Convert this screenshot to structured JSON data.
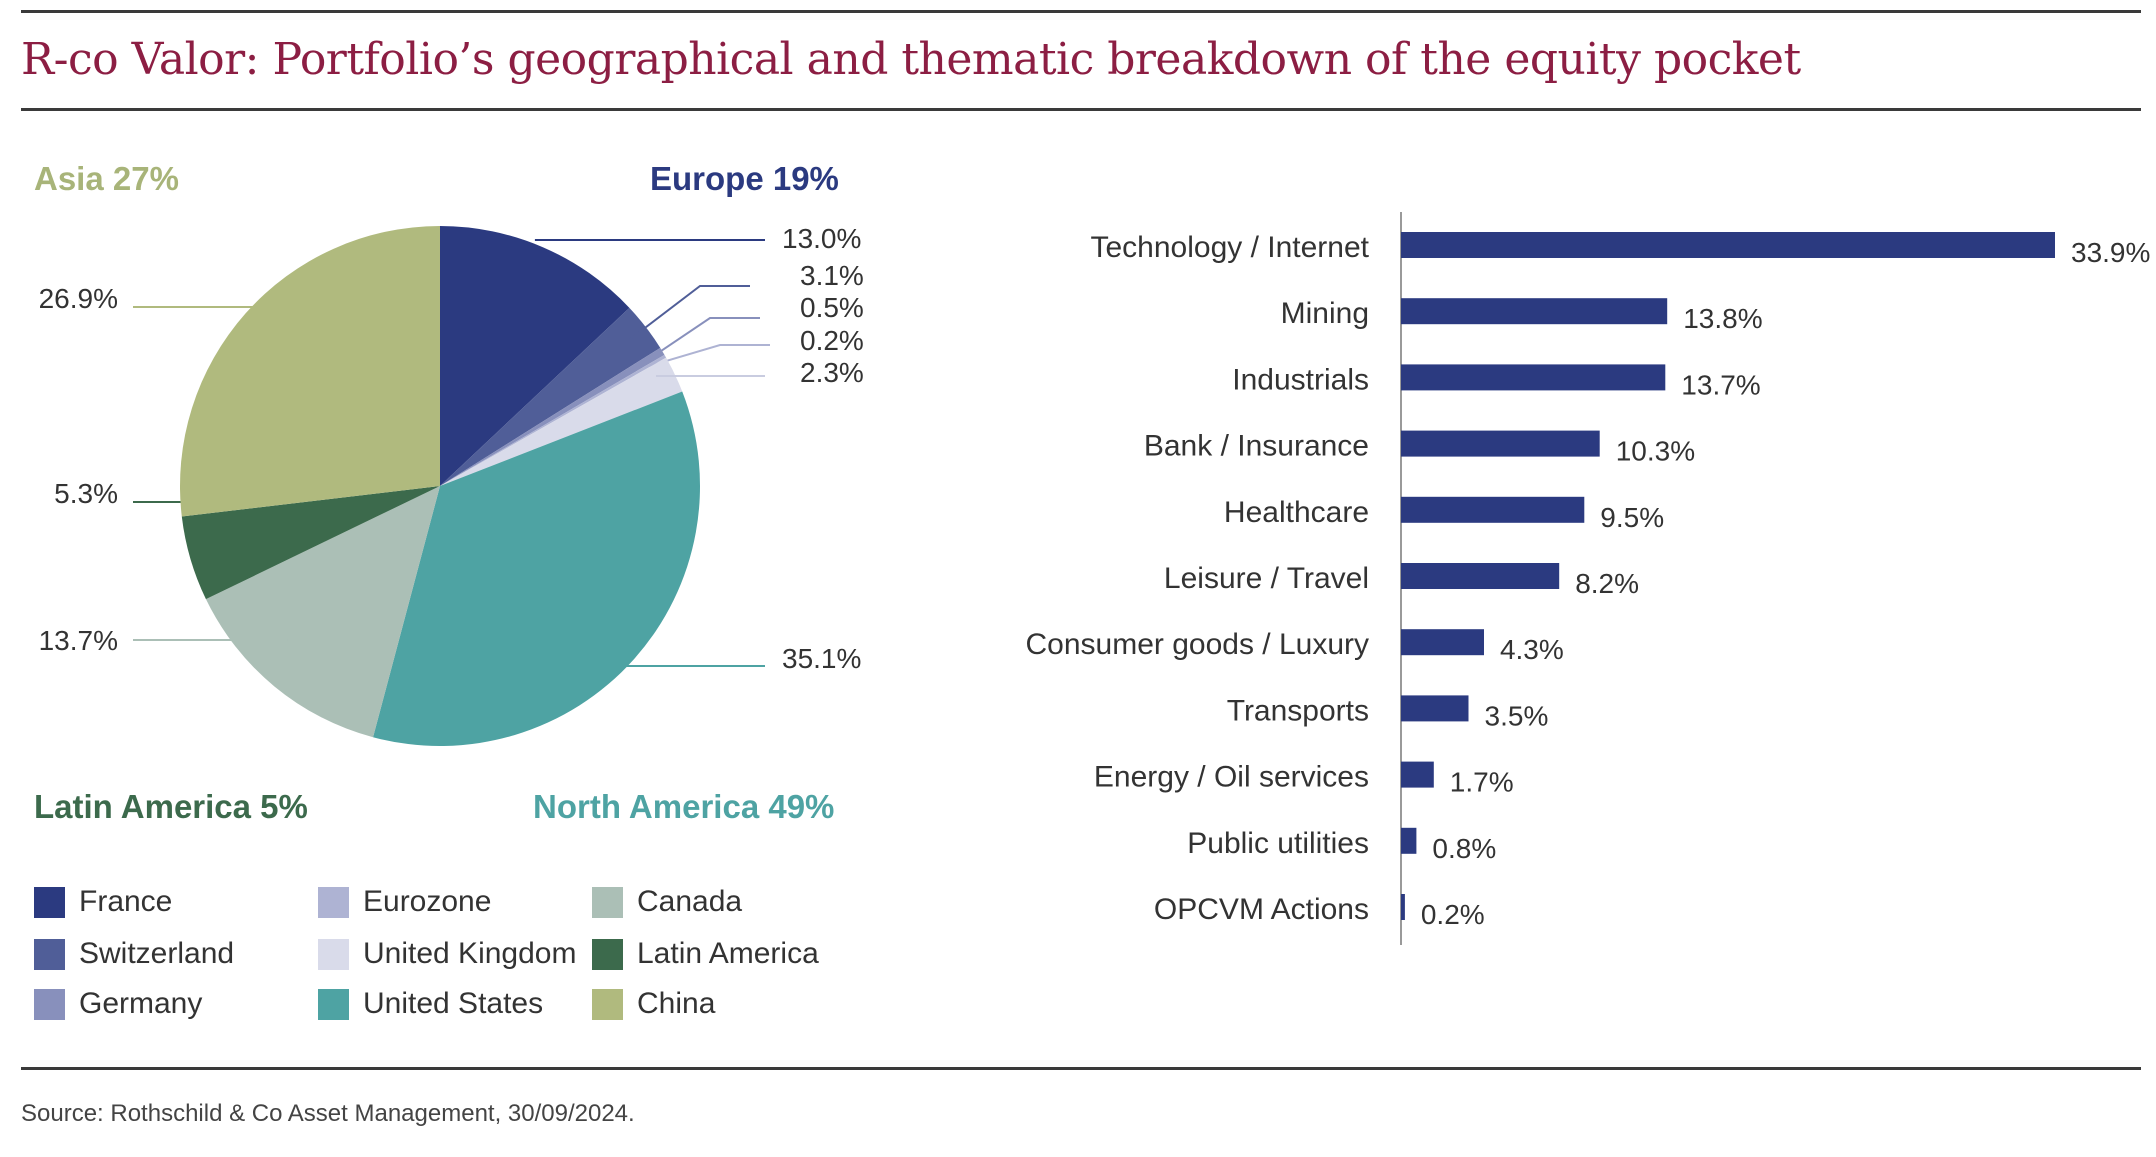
{
  "title": "R-co Valor: Portfolio’s geographical and thematic breakdown of the equity pocket",
  "source": "Source: Rothschild & Co Asset Management, 30/09/2024.",
  "colors": {
    "title": "#8c1e43",
    "bar": "#2b3a80",
    "asia_label": "#a8b479",
    "europe_label": "#2b3a80",
    "latam_label": "#3c6a4c",
    "namerica_label": "#4ea3a3"
  },
  "regions": {
    "asia": "Asia 27%",
    "europe": "Europe 19%",
    "latam": "Latin America 5%",
    "namerica": "North America 49%"
  },
  "legend": [
    {
      "label": "France",
      "color": "#2b3a80"
    },
    {
      "label": "Switzerland",
      "color": "#505e98"
    },
    {
      "label": "Germany",
      "color": "#8890bc"
    },
    {
      "label": "Eurozone",
      "color": "#aeb3d3"
    },
    {
      "label": "United Kingdom",
      "color": "#d9dbea"
    },
    {
      "label": "United States",
      "color": "#4ea3a3"
    },
    {
      "label": "Canada",
      "color": "#abbfb6"
    },
    {
      "label": "Latin America",
      "color": "#3c6a4c"
    },
    {
      "label": "China",
      "color": "#b0ba7e"
    }
  ],
  "chart_data": [
    {
      "type": "pie",
      "slices": [
        {
          "name": "France",
          "value": 13.0,
          "label": "13.0%",
          "color": "#2b3a80"
        },
        {
          "name": "Switzerland",
          "value": 3.1,
          "label": "3.1%",
          "color": "#505e98"
        },
        {
          "name": "Germany",
          "value": 0.5,
          "label": "0.5%",
          "color": "#8890bc"
        },
        {
          "name": "Eurozone",
          "value": 0.2,
          "label": "0.2%",
          "color": "#aeb3d3"
        },
        {
          "name": "United Kingdom",
          "value": 2.3,
          "label": "2.3%",
          "color": "#d9dbea"
        },
        {
          "name": "United States",
          "value": 35.1,
          "label": "35.1%",
          "color": "#4ea3a3"
        },
        {
          "name": "Canada",
          "value": 13.7,
          "label": "13.7%",
          "color": "#abbfb6"
        },
        {
          "name": "Latin America",
          "value": 5.3,
          "label": "5.3%",
          "color": "#3c6a4c"
        },
        {
          "name": "China",
          "value": 26.9,
          "label": "26.9%",
          "color": "#b0ba7e"
        }
      ]
    },
    {
      "type": "bar",
      "orientation": "horizontal",
      "categories": [
        "Technology / Internet",
        "Mining",
        "Industrials",
        "Bank / Insurance",
        "Healthcare",
        "Leisure / Travel",
        "Consumer goods / Luxury",
        "Transports",
        "Energy / Oil services",
        "Public utilities",
        "OPCVM Actions"
      ],
      "values": [
        33.9,
        13.8,
        13.7,
        10.3,
        9.5,
        8.2,
        4.3,
        3.5,
        1.7,
        0.8,
        0.2
      ],
      "labels": [
        "33.9%",
        "13.8%",
        "13.7%",
        "10.3%",
        "9.5%",
        "8.2%",
        "4.3%",
        "3.5%",
        "1.7%",
        "0.8%",
        "0.2%"
      ],
      "xlim": [
        0,
        33.9
      ]
    }
  ]
}
